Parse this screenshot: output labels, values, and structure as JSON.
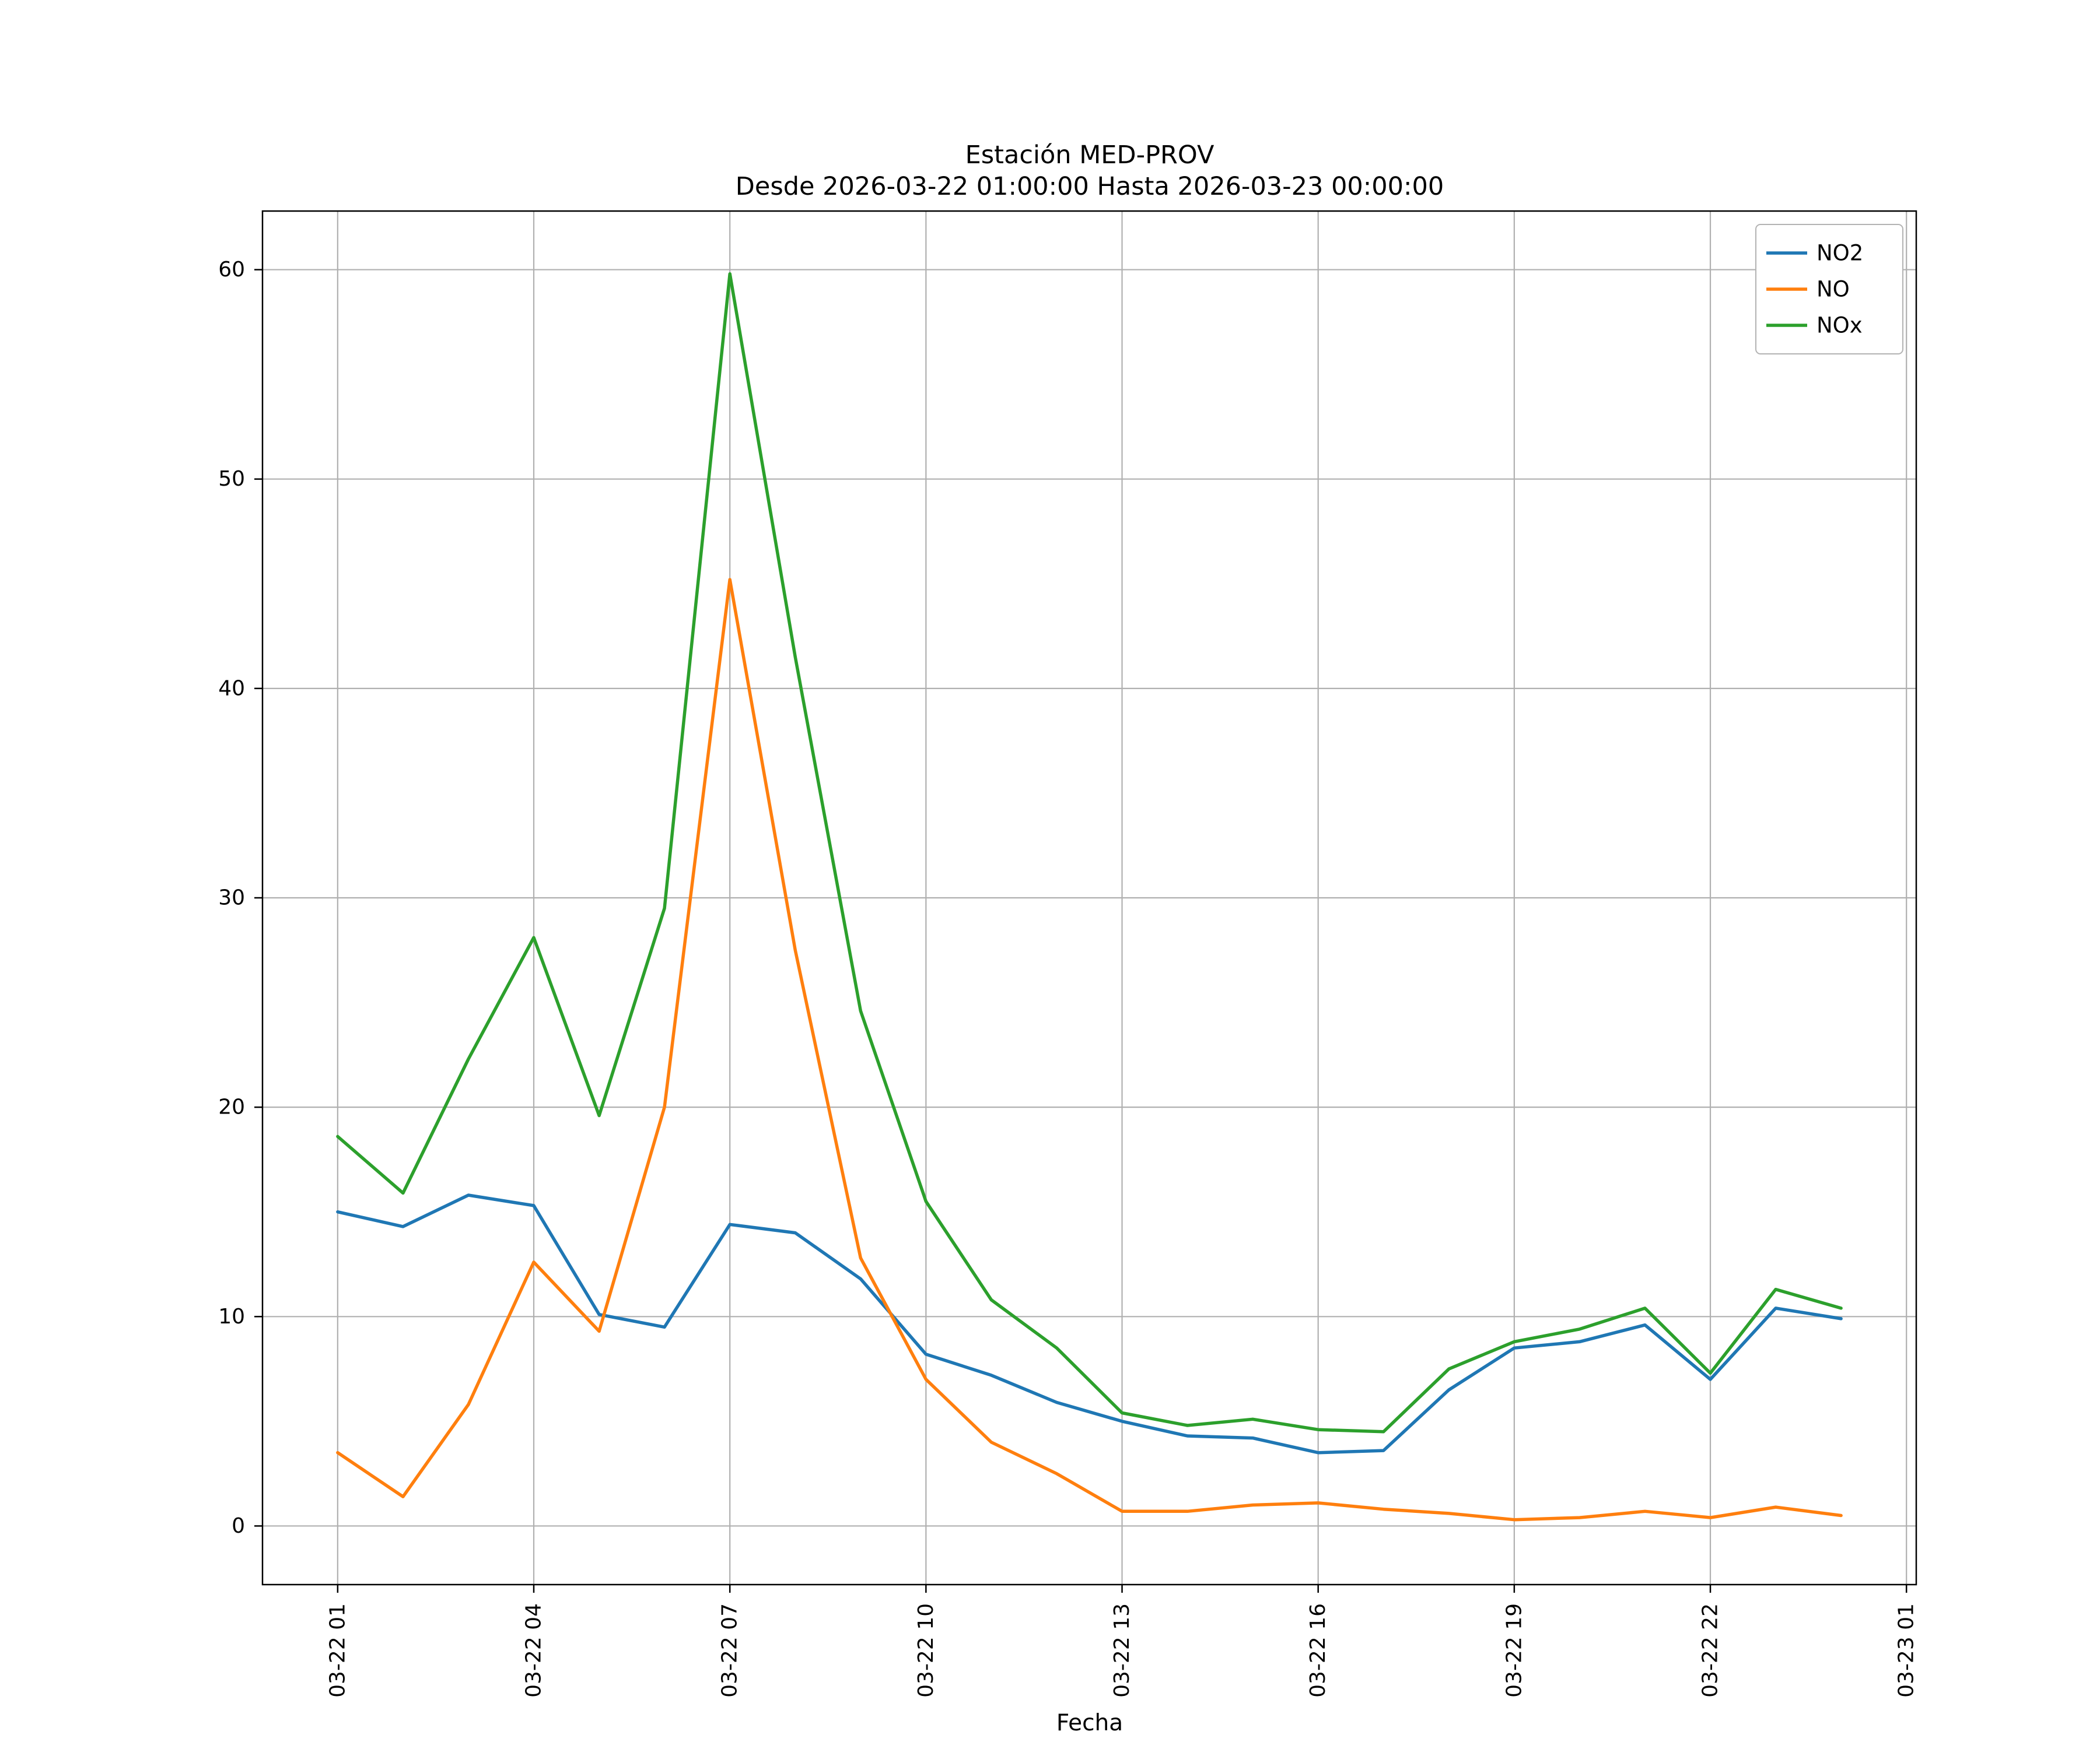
{
  "chart_data": {
    "type": "line",
    "title_line1": "Estación MED-PROV",
    "title_line2": "Desde 2026-03-22 01:00:00 Hasta 2026-03-23 00:00:00",
    "xlabel": "Fecha",
    "ylabel": "",
    "grid": true,
    "legend_position": "upper right",
    "x": [
      1,
      2,
      3,
      4,
      5,
      6,
      7,
      8,
      9,
      10,
      11,
      12,
      13,
      14,
      15,
      16,
      17,
      18,
      19,
      20,
      21,
      22,
      23,
      24
    ],
    "x_tick_positions": [
      1,
      4,
      7,
      10,
      13,
      16,
      19,
      22,
      25
    ],
    "x_tick_labels": [
      "03-22 01",
      "03-22 04",
      "03-22 07",
      "03-22 10",
      "03-22 13",
      "03-22 16",
      "03-22 19",
      "03-22 22",
      "03-23 01"
    ],
    "y_ticks": [
      0,
      10,
      20,
      30,
      40,
      50,
      60
    ],
    "xlim": [
      -0.15,
      25.15
    ],
    "ylim": [
      -2.8,
      62.8
    ],
    "series": [
      {
        "name": "NO2",
        "color": "#1f77b4",
        "values": [
          15.0,
          14.3,
          15.8,
          15.3,
          10.1,
          9.5,
          14.4,
          14.0,
          11.8,
          8.2,
          7.2,
          5.9,
          5.0,
          4.3,
          4.2,
          3.5,
          3.6,
          6.5,
          8.5,
          8.8,
          9.6,
          7.0,
          10.4,
          9.9
        ]
      },
      {
        "name": "NO",
        "color": "#ff7f0e",
        "values": [
          3.5,
          1.4,
          5.8,
          12.6,
          9.3,
          20.0,
          45.2,
          27.5,
          12.8,
          7.0,
          4.0,
          2.5,
          0.7,
          0.7,
          1.0,
          1.1,
          0.8,
          0.6,
          0.3,
          0.4,
          0.7,
          0.4,
          0.9,
          0.5
        ]
      },
      {
        "name": "NOx",
        "color": "#2ca02c",
        "values": [
          18.6,
          15.9,
          22.3,
          28.1,
          19.6,
          29.5,
          59.8,
          41.5,
          24.6,
          15.5,
          10.8,
          8.5,
          5.4,
          4.8,
          5.1,
          4.6,
          4.5,
          7.5,
          8.8,
          9.4,
          10.4,
          7.3,
          11.3,
          10.4
        ]
      }
    ]
  }
}
